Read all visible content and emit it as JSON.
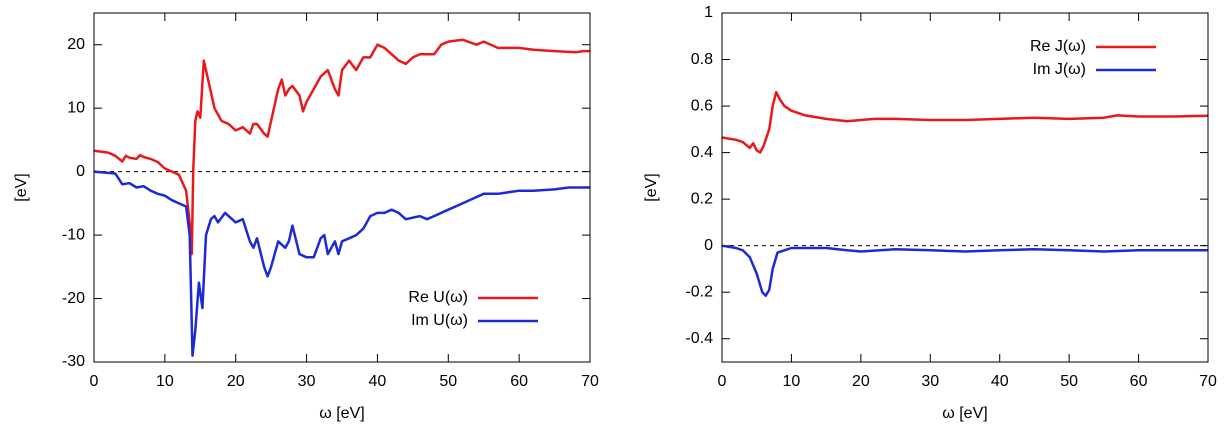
{
  "chart_data": [
    {
      "type": "line",
      "xlabel": "ω  [eV]",
      "ylabel": "[eV]",
      "xlim": [
        0,
        70
      ],
      "xticks": [
        0,
        10,
        20,
        30,
        40,
        50,
        60,
        70
      ],
      "ylim": [
        -30,
        25
      ],
      "yticks": [
        -30,
        -20,
        -10,
        0,
        10,
        20
      ],
      "zero_line": true,
      "legend": "lower right",
      "series": [
        {
          "name": "Re U(ω)",
          "color": "#e8191b",
          "x": [
            0,
            2,
            3,
            4,
            4.5,
            5,
            6,
            6.5,
            7,
            8,
            9,
            10,
            11,
            12,
            13,
            13.5,
            13.8,
            14,
            14.3,
            14.6,
            15,
            15.5,
            16,
            17,
            18,
            19,
            20,
            21,
            22,
            22.5,
            23,
            24,
            24.5,
            25,
            26,
            26.5,
            27,
            27.5,
            28,
            29,
            29.5,
            30,
            31,
            32,
            33,
            34,
            34.5,
            35,
            36,
            37,
            38,
            39,
            40,
            41,
            42,
            43,
            44,
            45,
            46,
            48,
            49,
            50,
            52,
            54,
            55,
            57,
            60,
            62,
            65,
            68,
            69,
            70
          ],
          "values": [
            3.3,
            3.0,
            2.5,
            1.6,
            2.5,
            2.2,
            2.0,
            2.6,
            2.3,
            2.0,
            1.5,
            0.5,
            0,
            -0.5,
            -3,
            -8,
            -13,
            0,
            8,
            9.5,
            8.5,
            17.5,
            15,
            10,
            8,
            7.5,
            6.5,
            7,
            6,
            7.5,
            7.5,
            6,
            5.5,
            8,
            13,
            14.5,
            12,
            13,
            13.5,
            12,
            9.5,
            11,
            13,
            15,
            16,
            13,
            12,
            16,
            17.5,
            16,
            18,
            18,
            20,
            19.5,
            18.5,
            17.5,
            17,
            18,
            18.5,
            18.5,
            20,
            20.5,
            20.8,
            20,
            20.5,
            19.5,
            19.5,
            19.2,
            19,
            18.8,
            19,
            19
          ]
        },
        {
          "name": "Im U(ω)",
          "color": "#1c2ad6",
          "x": [
            0,
            3,
            4,
            5,
            6,
            7,
            8,
            9,
            10,
            11,
            12,
            13,
            13.5,
            13.9,
            14.3,
            14.8,
            15.3,
            15.8,
            16.5,
            17,
            17.5,
            18.5,
            19,
            20,
            21,
            22,
            22.5,
            23,
            24,
            24.5,
            25,
            26,
            27,
            27.5,
            28,
            29,
            30,
            31,
            32,
            32.5,
            33,
            34,
            34.5,
            35,
            36,
            37,
            38,
            39,
            40,
            41,
            42,
            43,
            44,
            46,
            47,
            48,
            50,
            52,
            54,
            55,
            57,
            60,
            62,
            65,
            67,
            70
          ],
          "values": [
            0,
            -0.3,
            -2,
            -1.8,
            -2.5,
            -2.3,
            -3,
            -3.5,
            -3.8,
            -4.5,
            -5,
            -5.5,
            -10,
            -29,
            -25,
            -17.5,
            -21.5,
            -10,
            -7.5,
            -7,
            -8,
            -6.5,
            -7,
            -8,
            -7.5,
            -11,
            -12,
            -10.5,
            -15,
            -16.5,
            -15,
            -11,
            -12,
            -11,
            -8.5,
            -13,
            -13.5,
            -13.5,
            -10.5,
            -10,
            -13,
            -11,
            -13,
            -11,
            -10.5,
            -10,
            -9,
            -7,
            -6.5,
            -6.5,
            -6,
            -6.5,
            -7.5,
            -7,
            -7.5,
            -7,
            -6,
            -5,
            -4,
            -3.5,
            -3.5,
            -3,
            -3,
            -2.8,
            -2.5,
            -2.5
          ]
        }
      ]
    },
    {
      "type": "line",
      "xlabel": "ω  [eV]",
      "ylabel": "[eV]",
      "xlim": [
        0,
        70
      ],
      "xticks": [
        0,
        10,
        20,
        30,
        40,
        50,
        60,
        70
      ],
      "ylim": [
        -0.5,
        1
      ],
      "yticks": [
        -0.4,
        -0.2,
        0,
        0.2,
        0.4,
        0.6,
        0.8,
        1
      ],
      "zero_line": true,
      "legend": "upper right",
      "series": [
        {
          "name": "Re J(ω)",
          "color": "#e8191b",
          "x": [
            0,
            2,
            3,
            4,
            4.5,
            5,
            5.5,
            6,
            6.8,
            7.3,
            7.8,
            8.3,
            9,
            10,
            12,
            15,
            18,
            20,
            22,
            25,
            30,
            35,
            40,
            45,
            50,
            55,
            57,
            60,
            65,
            70
          ],
          "values": [
            0.465,
            0.455,
            0.445,
            0.42,
            0.44,
            0.41,
            0.4,
            0.43,
            0.5,
            0.6,
            0.66,
            0.63,
            0.6,
            0.58,
            0.56,
            0.545,
            0.535,
            0.54,
            0.545,
            0.545,
            0.54,
            0.54,
            0.545,
            0.55,
            0.545,
            0.55,
            0.56,
            0.555,
            0.555,
            0.558
          ]
        },
        {
          "name": "Im J(ω)",
          "color": "#1c2ad6",
          "x": [
            0,
            2,
            3,
            4,
            5,
            5.8,
            6.3,
            6.8,
            7.3,
            8,
            9,
            10,
            12,
            15,
            18,
            20,
            25,
            30,
            35,
            40,
            45,
            50,
            55,
            60,
            65,
            70
          ],
          "values": [
            0,
            -0.01,
            -0.02,
            -0.05,
            -0.12,
            -0.2,
            -0.215,
            -0.19,
            -0.1,
            -0.03,
            -0.02,
            -0.01,
            -0.01,
            -0.01,
            -0.02,
            -0.025,
            -0.015,
            -0.02,
            -0.025,
            -0.02,
            -0.015,
            -0.02,
            -0.025,
            -0.02,
            -0.02,
            -0.02
          ]
        }
      ]
    }
  ]
}
